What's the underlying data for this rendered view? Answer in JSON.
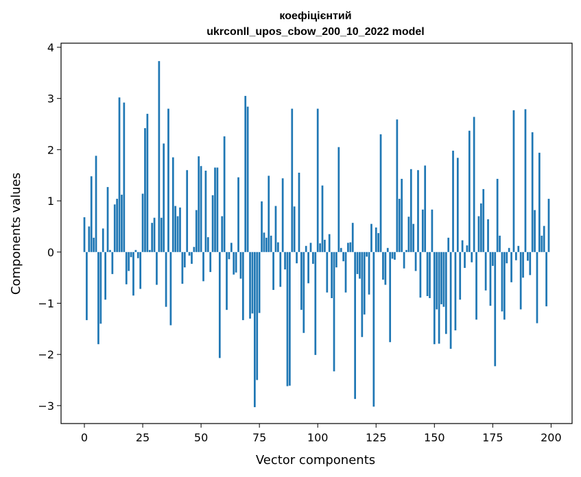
{
  "chart_data": {
    "type": "bar",
    "title_lines": [
      "коефіцієнтий",
      "ukrconll_upos_cbow_200_10_2022 model"
    ],
    "xlabel": "Vector components",
    "ylabel": "Components values",
    "xlim": [
      -10,
      209
    ],
    "ylim": [
      -3.35,
      4.08
    ],
    "xticks": [
      0,
      25,
      50,
      75,
      100,
      125,
      150,
      175,
      200
    ],
    "yticks": [
      -3,
      -2,
      -1,
      0,
      1,
      2,
      3,
      4
    ],
    "bar_color": "#1f77b4",
    "grid": false,
    "x": [
      0,
      1,
      2,
      3,
      4,
      5,
      6,
      7,
      8,
      9,
      10,
      11,
      12,
      13,
      14,
      15,
      16,
      17,
      18,
      19,
      20,
      21,
      22,
      23,
      24,
      25,
      26,
      27,
      28,
      29,
      30,
      31,
      32,
      33,
      34,
      35,
      36,
      37,
      38,
      39,
      40,
      41,
      42,
      43,
      44,
      45,
      46,
      47,
      48,
      49,
      50,
      51,
      52,
      53,
      54,
      55,
      56,
      57,
      58,
      59,
      60,
      61,
      62,
      63,
      64,
      65,
      66,
      67,
      68,
      69,
      70,
      71,
      72,
      73,
      74,
      75,
      76,
      77,
      78,
      79,
      80,
      81,
      82,
      83,
      84,
      85,
      86,
      87,
      88,
      89,
      90,
      91,
      92,
      93,
      94,
      95,
      96,
      97,
      98,
      99,
      100,
      101,
      102,
      103,
      104,
      105,
      106,
      107,
      108,
      109,
      110,
      111,
      112,
      113,
      114,
      115,
      116,
      117,
      118,
      119,
      120,
      121,
      122,
      123,
      124,
      125,
      126,
      127,
      128,
      129,
      130,
      131,
      132,
      133,
      134,
      135,
      136,
      137,
      138,
      139,
      140,
      141,
      142,
      143,
      144,
      145,
      146,
      147,
      148,
      149,
      150,
      151,
      152,
      153,
      154,
      155,
      156,
      157,
      158,
      159,
      160,
      161,
      162,
      163,
      164,
      165,
      166,
      167,
      168,
      169,
      170,
      171,
      172,
      173,
      174,
      175,
      176,
      177,
      178,
      179,
      180,
      181,
      182,
      183,
      184,
      185,
      186,
      187,
      188,
      189,
      190,
      191,
      192,
      193,
      194,
      195,
      196,
      197,
      198,
      199
    ],
    "values": [
      0.68,
      -1.33,
      0.5,
      1.48,
      0.28,
      1.88,
      -1.8,
      -1.4,
      0.46,
      -0.93,
      1.27,
      0.04,
      -0.43,
      0.93,
      1.04,
      3.02,
      1.12,
      2.92,
      -0.63,
      -0.37,
      -0.1,
      -0.85,
      0.04,
      -0.12,
      -0.72,
      1.14,
      2.42,
      2.7,
      0.04,
      0.57,
      0.67,
      -0.64,
      3.73,
      0.67,
      2.12,
      -1.07,
      2.8,
      -1.43,
      1.85,
      0.9,
      0.7,
      0.87,
      -0.62,
      -0.3,
      1.6,
      -0.07,
      -0.23,
      0.1,
      0.82,
      1.87,
      1.68,
      -0.57,
      1.59,
      0.29,
      -0.39,
      1.11,
      1.65,
      1.65,
      -2.07,
      0.7,
      2.26,
      -1.13,
      -0.14,
      0.18,
      -0.44,
      -0.4,
      1.46,
      -0.52,
      -1.33,
      3.05,
      2.84,
      -1.3,
      -1.2,
      -3.03,
      -2.5,
      -1.19,
      0.99,
      0.38,
      0.28,
      1.49,
      0.32,
      -0.74,
      0.9,
      0.19,
      -0.68,
      1.44,
      -0.34,
      -2.62,
      -2.61,
      2.8,
      0.89,
      -0.22,
      1.55,
      -1.13,
      -1.58,
      0.12,
      -0.61,
      0.18,
      -0.23,
      -2.01,
      2.8,
      0.17,
      1.3,
      0.24,
      -0.79,
      0.35,
      -0.9,
      -2.33,
      -0.3,
      2.05,
      0.08,
      -0.18,
      -0.79,
      0.18,
      0.19,
      0.57,
      -2.87,
      -0.43,
      -0.52,
      -1.66,
      -1.22,
      -0.09,
      -0.83,
      0.55,
      -3.02,
      0.48,
      0.37,
      2.3,
      -0.54,
      -0.64,
      0.08,
      -1.76,
      -0.13,
      -0.15,
      2.59,
      1.04,
      1.43,
      -0.32,
      0.04,
      0.69,
      1.62,
      0.55,
      -0.37,
      1.6,
      -0.89,
      0.83,
      1.69,
      -0.86,
      -0.9,
      0.83,
      -1.8,
      -1.12,
      -1.79,
      -1.02,
      -1.07,
      -1.6,
      0.28,
      -1.89,
      1.98,
      -1.53,
      1.84,
      -0.93,
      0.23,
      -0.31,
      0.13,
      2.37,
      -0.2,
      2.64,
      -1.32,
      0.7,
      0.95,
      1.23,
      -0.75,
      0.64,
      -1.05,
      -0.27,
      -2.23,
      1.43,
      0.32,
      -1.16,
      -1.32,
      -0.22,
      0.08,
      -0.59,
      2.77,
      -0.16,
      0.12,
      -1.12,
      -0.5,
      2.79,
      -0.17,
      -0.45,
      2.34,
      0.82,
      -1.39,
      1.94,
      0.32,
      0.51,
      -1.06,
      1.04
    ]
  }
}
